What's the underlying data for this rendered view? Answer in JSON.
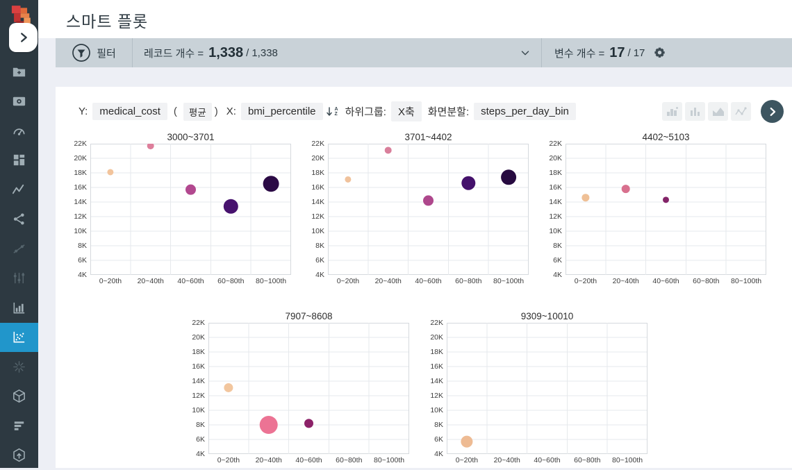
{
  "app": {
    "title": "스마트 플롯"
  },
  "theme": {
    "sidebar_bg": "#2d3941",
    "accent_blue": "#2196cb",
    "filter_bar_bg": "#c9d2d8",
    "panel_bg": "#ffffff"
  },
  "sidebar": {
    "collapse_icon": "chevron-right-icon",
    "items": [
      {
        "icon": "folder-plus-icon",
        "state": "normal"
      },
      {
        "icon": "camera-icon",
        "state": "normal"
      },
      {
        "icon": "gauge-icon",
        "state": "normal"
      },
      {
        "icon": "grid-blocks-icon",
        "state": "normal"
      },
      {
        "icon": "zigzag-line-icon",
        "state": "normal"
      },
      {
        "icon": "share-nodes-icon",
        "state": "normal"
      },
      {
        "icon": "dot-link-icon",
        "state": "dim"
      },
      {
        "icon": "sliders-icon",
        "state": "dim"
      },
      {
        "icon": "bar-chart-icon",
        "state": "normal"
      },
      {
        "icon": "scatter-plot-icon",
        "state": "active"
      },
      {
        "icon": "starburst-icon",
        "state": "dim"
      },
      {
        "icon": "cube-icon",
        "state": "normal"
      },
      {
        "icon": "ranking-bars-icon",
        "state": "normal"
      },
      {
        "icon": "hexagon-target-icon",
        "state": "normal"
      }
    ]
  },
  "filter_bar": {
    "filter_label": "필터",
    "record_label": "레코드 개수 =",
    "record_current": "1,338",
    "record_sep": "/",
    "record_total": "1,338",
    "variable_label": "변수 개수 =",
    "variable_current": "17",
    "variable_sep": "/",
    "variable_total": "17"
  },
  "controls": {
    "y_label": "Y:",
    "y_field": "medical_cost",
    "agg_open": "(",
    "agg_value": "평균",
    "agg_close": ")",
    "x_label": "X:",
    "x_field": "bmi_percentile",
    "subgroup_label": "하위그룹:",
    "subgroup_value": "X축",
    "split_label": "화면분할:",
    "split_value": "steps_per_day_bin",
    "chart_type_buttons": [
      "histogram-icon",
      "column-chart-icon",
      "area-chart-icon",
      "line-scatter-icon"
    ]
  },
  "chart_data": {
    "type": "scatter",
    "y_variable": "medical_cost (평균)",
    "x_variable": "bmi_percentile",
    "split_variable": "steps_per_day_bin",
    "categories": [
      "0~20th",
      "20~40th",
      "40~60th",
      "60~80th",
      "80~100th"
    ],
    "ylim": [
      4000,
      22000
    ],
    "ytick_step": 2000,
    "yticks": [
      "22K",
      "20K",
      "18K",
      "16K",
      "14K",
      "12K",
      "10K",
      "8K",
      "6K",
      "4K"
    ],
    "grid": true,
    "charts": [
      {
        "title": "3000~3701",
        "points": [
          {
            "x": "0~20th",
            "y": 18100,
            "r": 4.5,
            "color": "#f2c49c"
          },
          {
            "x": "20~40th",
            "y": 21700,
            "r": 5,
            "color": "#dd7f9b"
          },
          {
            "x": "40~60th",
            "y": 15700,
            "r": 7.5,
            "color": "#b2488f"
          },
          {
            "x": "60~80th",
            "y": 13400,
            "r": 10.5,
            "color": "#47126e"
          },
          {
            "x": "80~100th",
            "y": 16500,
            "r": 11.5,
            "color": "#2b0a45"
          }
        ]
      },
      {
        "title": "3701~4402",
        "points": [
          {
            "x": "0~20th",
            "y": 17100,
            "r": 4.5,
            "color": "#f0c29c"
          },
          {
            "x": "20~40th",
            "y": 21100,
            "r": 5,
            "color": "#d97f9b"
          },
          {
            "x": "40~60th",
            "y": 14200,
            "r": 7.5,
            "color": "#ae478c"
          },
          {
            "x": "60~80th",
            "y": 16600,
            "r": 10,
            "color": "#44116b"
          },
          {
            "x": "80~100th",
            "y": 17400,
            "r": 11,
            "color": "#270a40"
          }
        ]
      },
      {
        "title": "4402~5103",
        "points": [
          {
            "x": "0~20th",
            "y": 14600,
            "r": 5.5,
            "color": "#efc096"
          },
          {
            "x": "20~40th",
            "y": 15800,
            "r": 6,
            "color": "#d8708e"
          },
          {
            "x": "40~60th",
            "y": 14300,
            "r": 4.5,
            "color": "#832468"
          }
        ]
      },
      {
        "title": "7907~8608",
        "points": [
          {
            "x": "0~20th",
            "y": 13100,
            "r": 6.5,
            "color": "#f2c69e"
          },
          {
            "x": "20~40th",
            "y": 8000,
            "r": 13,
            "color": "#ec7394"
          },
          {
            "x": "40~60th",
            "y": 8200,
            "r": 6.5,
            "color": "#8c2168"
          }
        ]
      },
      {
        "title": "9309~10010",
        "points": [
          {
            "x": "0~20th",
            "y": 5700,
            "r": 8.5,
            "color": "#eebb93"
          }
        ]
      }
    ]
  }
}
